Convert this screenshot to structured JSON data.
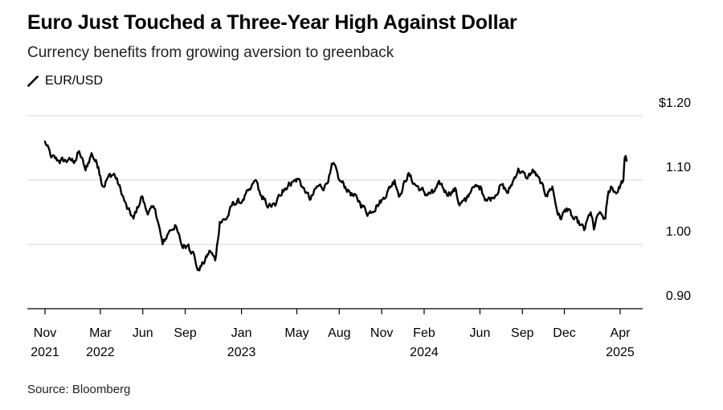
{
  "header": {
    "title": "Euro Just Touched a Three-Year High Against Dollar",
    "subtitle": "Currency benefits from growing aversion to greenback"
  },
  "footer": {
    "source": "Source: Bloomberg"
  },
  "colors": {
    "line": "#000000",
    "grid": "#d6d6d6",
    "axis": "#000000",
    "text": "#000000"
  },
  "chart_data": {
    "type": "line",
    "legend": {
      "placement": "top-left",
      "entries": [
        "EUR/USD"
      ]
    },
    "grid": true,
    "y_axis": {
      "position": "right",
      "ylim": [
        0.9,
        1.2
      ],
      "ticks": [
        {
          "value": 1.2,
          "label": "$1.20"
        },
        {
          "value": 1.1,
          "label": "1.10"
        },
        {
          "value": 1.0,
          "label": "1.00"
        },
        {
          "value": 0.9,
          "label": "0.90"
        }
      ]
    },
    "x_axis": {
      "xlim": [
        "2021-11-01",
        "2025-06-01"
      ],
      "ticks": [
        {
          "date": "2021-11-01",
          "label": "Nov",
          "year": "2021"
        },
        {
          "date": "2022-03-01",
          "label": "Mar",
          "year": "2022"
        },
        {
          "date": "2022-06-01",
          "label": "Jun"
        },
        {
          "date": "2022-09-01",
          "label": "Sep"
        },
        {
          "date": "2023-01-01",
          "label": "Jan",
          "year": "2023"
        },
        {
          "date": "2023-05-01",
          "label": "May"
        },
        {
          "date": "2023-08-01",
          "label": "Aug"
        },
        {
          "date": "2023-11-01",
          "label": "Nov"
        },
        {
          "date": "2024-02-01",
          "label": "Feb",
          "year": "2024"
        },
        {
          "date": "2024-06-01",
          "label": "Jun"
        },
        {
          "date": "2024-09-01",
          "label": "Sep"
        },
        {
          "date": "2024-12-01",
          "label": "Dec"
        },
        {
          "date": "2025-04-01",
          "label": "Apr",
          "year": "2025"
        }
      ]
    },
    "series": [
      {
        "name": "EUR/USD",
        "points": [
          [
            "2021-11-01",
            1.16
          ],
          [
            "2021-11-15",
            1.135
          ],
          [
            "2021-12-01",
            1.13
          ],
          [
            "2021-12-20",
            1.13
          ],
          [
            "2022-01-05",
            1.13
          ],
          [
            "2022-01-14",
            1.145
          ],
          [
            "2022-01-28",
            1.115
          ],
          [
            "2022-02-10",
            1.142
          ],
          [
            "2022-02-25",
            1.12
          ],
          [
            "2022-03-07",
            1.09
          ],
          [
            "2022-03-18",
            1.105
          ],
          [
            "2022-03-31",
            1.11
          ],
          [
            "2022-04-14",
            1.085
          ],
          [
            "2022-04-28",
            1.055
          ],
          [
            "2022-05-12",
            1.04
          ],
          [
            "2022-05-30",
            1.075
          ],
          [
            "2022-06-10",
            1.05
          ],
          [
            "2022-06-28",
            1.055
          ],
          [
            "2022-07-14",
            1.0
          ],
          [
            "2022-07-28",
            1.02
          ],
          [
            "2022-08-10",
            1.03
          ],
          [
            "2022-08-25",
            0.997
          ],
          [
            "2022-09-08",
            1.0
          ],
          [
            "2022-09-20",
            0.985
          ],
          [
            "2022-09-28",
            0.96
          ],
          [
            "2022-10-10",
            0.97
          ],
          [
            "2022-10-25",
            0.99
          ],
          [
            "2022-11-05",
            0.975
          ],
          [
            "2022-11-15",
            1.035
          ],
          [
            "2022-11-30",
            1.04
          ],
          [
            "2022-12-15",
            1.065
          ],
          [
            "2023-01-02",
            1.066
          ],
          [
            "2023-01-20",
            1.085
          ],
          [
            "2023-02-01",
            1.1
          ],
          [
            "2023-02-15",
            1.07
          ],
          [
            "2023-03-01",
            1.06
          ],
          [
            "2023-03-15",
            1.06
          ],
          [
            "2023-03-31",
            1.085
          ],
          [
            "2023-04-20",
            1.097
          ],
          [
            "2023-05-05",
            1.102
          ],
          [
            "2023-05-20",
            1.08
          ],
          [
            "2023-05-31",
            1.07
          ],
          [
            "2023-06-15",
            1.09
          ],
          [
            "2023-06-30",
            1.09
          ],
          [
            "2023-07-12",
            1.11
          ],
          [
            "2023-07-18",
            1.125
          ],
          [
            "2023-08-01",
            1.1
          ],
          [
            "2023-08-20",
            1.085
          ],
          [
            "2023-09-01",
            1.075
          ],
          [
            "2023-09-15",
            1.065
          ],
          [
            "2023-10-03",
            1.048
          ],
          [
            "2023-10-20",
            1.06
          ],
          [
            "2023-11-03",
            1.07
          ],
          [
            "2023-11-15",
            1.085
          ],
          [
            "2023-11-29",
            1.1
          ],
          [
            "2023-12-10",
            1.075
          ],
          [
            "2023-12-28",
            1.11
          ],
          [
            "2024-01-10",
            1.095
          ],
          [
            "2024-01-25",
            1.085
          ],
          [
            "2024-02-05",
            1.078
          ],
          [
            "2024-02-20",
            1.08
          ],
          [
            "2024-03-08",
            1.094
          ],
          [
            "2024-03-20",
            1.08
          ],
          [
            "2024-04-10",
            1.085
          ],
          [
            "2024-04-16",
            1.063
          ],
          [
            "2024-05-01",
            1.067
          ],
          [
            "2024-05-15",
            1.088
          ],
          [
            "2024-06-04",
            1.088
          ],
          [
            "2024-06-14",
            1.07
          ],
          [
            "2024-06-28",
            1.072
          ],
          [
            "2024-07-17",
            1.093
          ],
          [
            "2024-08-01",
            1.08
          ],
          [
            "2024-08-23",
            1.118
          ],
          [
            "2024-09-10",
            1.103
          ],
          [
            "2024-09-25",
            1.115
          ],
          [
            "2024-10-10",
            1.095
          ],
          [
            "2024-10-23",
            1.077
          ],
          [
            "2024-11-05",
            1.09
          ],
          [
            "2024-11-15",
            1.053
          ],
          [
            "2024-11-22",
            1.04
          ],
          [
            "2024-12-06",
            1.056
          ],
          [
            "2024-12-20",
            1.04
          ],
          [
            "2025-01-05",
            1.03
          ],
          [
            "2025-01-13",
            1.022
          ],
          [
            "2025-01-27",
            1.05
          ],
          [
            "2025-02-03",
            1.023
          ],
          [
            "2025-02-14",
            1.048
          ],
          [
            "2025-02-28",
            1.04
          ],
          [
            "2025-03-05",
            1.075
          ],
          [
            "2025-03-12",
            1.09
          ],
          [
            "2025-03-25",
            1.08
          ],
          [
            "2025-04-02",
            1.093
          ],
          [
            "2025-04-08",
            1.1
          ],
          [
            "2025-04-11",
            1.135
          ],
          [
            "2025-04-15",
            1.13
          ]
        ]
      }
    ]
  }
}
